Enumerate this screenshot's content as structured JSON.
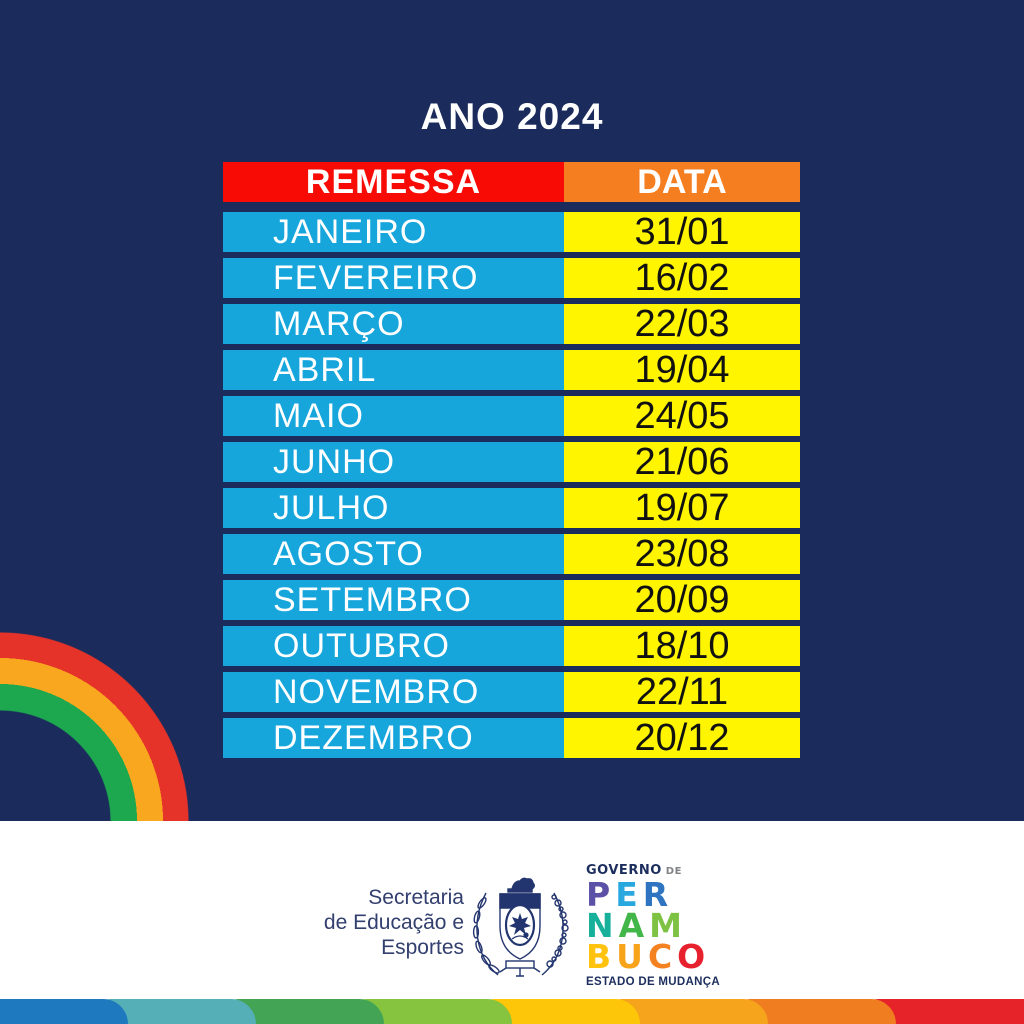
{
  "title": "ANO 2024",
  "table": {
    "headers": [
      {
        "label": "REMESSA"
      },
      {
        "label": "DATA"
      }
    ],
    "rows": [
      {
        "month": "JANEIRO",
        "date": "31/01"
      },
      {
        "month": "FEVEREIRO",
        "date": "16/02"
      },
      {
        "month": "MARÇO",
        "date": "22/03"
      },
      {
        "month": "ABRIL",
        "date": "19/04"
      },
      {
        "month": "MAIO",
        "date": "24/05"
      },
      {
        "month": "JUNHO",
        "date": "21/06"
      },
      {
        "month": "JULHO",
        "date": "19/07"
      },
      {
        "month": "AGOSTO",
        "date": "23/08"
      },
      {
        "month": "SETEMBRO",
        "date": "20/09"
      },
      {
        "month": "OUTUBRO",
        "date": "18/10"
      },
      {
        "month": "NOVEMBRO",
        "date": "22/11"
      },
      {
        "month": "DEZEMBRO",
        "date": "20/12"
      }
    ]
  },
  "footer": {
    "org_lines": [
      "Secretaria",
      "de Educação e",
      "Esportes"
    ],
    "gov_logo": {
      "word_governo": "GOVERNO",
      "word_de": "DE",
      "name_lines": [
        [
          {
            "ch": "P",
            "color": "#5B51A6"
          },
          {
            "ch": "E",
            "color": "#29A8E0"
          },
          {
            "ch": "R",
            "color": "#2E74C0"
          }
        ],
        [
          {
            "ch": "N",
            "color": "#16B09B"
          },
          {
            "ch": "A",
            "color": "#43B649"
          },
          {
            "ch": "M",
            "color": "#7DC242"
          }
        ],
        [
          {
            "ch": "B",
            "color": "#FFC20E"
          },
          {
            "ch": "U",
            "color": "#F7A41B"
          },
          {
            "ch": "C",
            "color": "#F58220"
          },
          {
            "ch": "O",
            "color": "#E8212E"
          }
        ]
      ],
      "tagline": "ESTADO DE MUDANÇA"
    }
  },
  "colors": {
    "navy": "#1A2B5C",
    "header-red": "#F80B05",
    "header-orange": "#F57E20",
    "row-blue": "#16A6DC",
    "row-yellow": "#FFF500",
    "date-text": "#111111",
    "footer-bg": "#FFFFFF",
    "org-text": "#33406F",
    "logo-navy": "#1C2E5E",
    "logo-gray": "#808285",
    "crest-line": "#23356F"
  },
  "rainbow_arc_colors_inner_to_outer": [
    "#1DA84F",
    "#F9A71F",
    "#E63329"
  ],
  "bottom_stripe": [
    "#1E79BE",
    "#54AFB7",
    "#44A455",
    "#86C440",
    "#FDC608",
    "#F6A41C",
    "#F07E21",
    "#E52329"
  ]
}
